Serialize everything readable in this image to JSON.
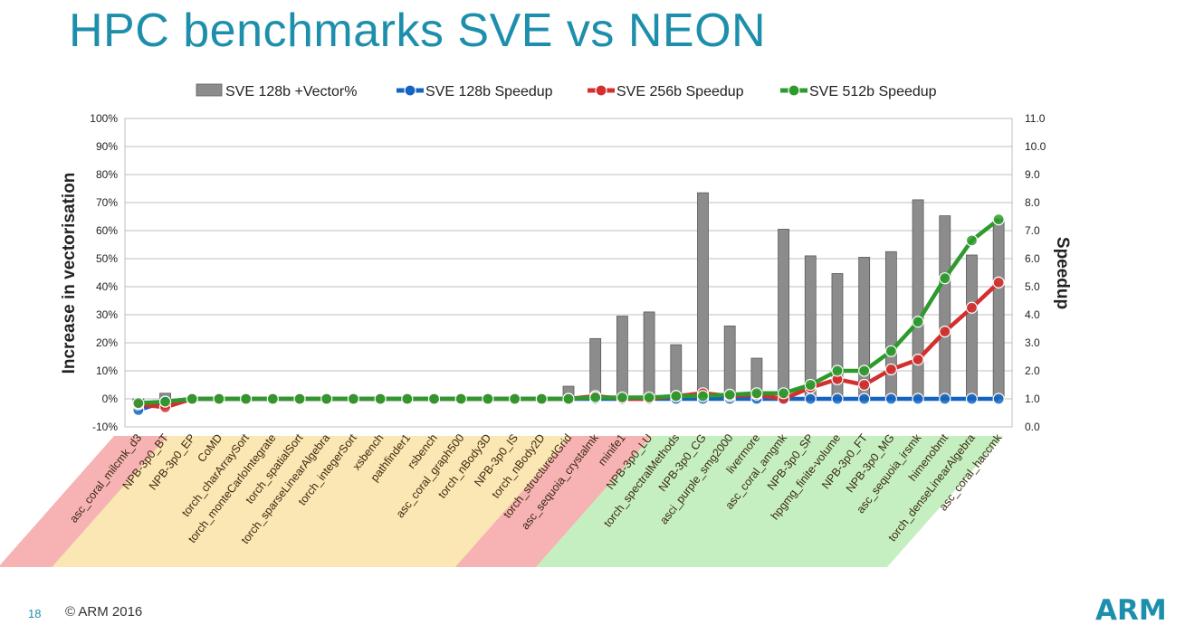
{
  "slide": {
    "title": "HPC benchmarks SVE vs NEON",
    "page_number": "18",
    "copyright": "© ARM 2016",
    "logo_text": "ARM"
  },
  "colors": {
    "title": "#1d8fac",
    "bar": "#8c8c8c",
    "sve128": "#1565c0",
    "sve256": "#d32f2f",
    "sve512": "#2e9a2e",
    "band_red": "#f7b3b3",
    "band_yellow": "#fbe7b3",
    "band_green": "#c6efc1"
  },
  "chart_data": {
    "type": "bar+line",
    "ylabel": "Increase in vectorisation",
    "y2label": "Speedup",
    "ylim": [
      -10,
      100
    ],
    "y_ticks": [
      "-10%",
      "0%",
      "10%",
      "20%",
      "30%",
      "40%",
      "50%",
      "60%",
      "70%",
      "80%",
      "90%",
      "100%"
    ],
    "y2lim": [
      0,
      11
    ],
    "y2_ticks": [
      "0.0",
      "1.0",
      "2.0",
      "3.0",
      "4.0",
      "5.0",
      "6.0",
      "7.0",
      "8.0",
      "9.0",
      "10.0",
      "11.0"
    ],
    "legend_position": "top",
    "categories": [
      "asc_coral_milcmk_d3",
      "NPB-3p0_BT",
      "NPB-3p0_EP",
      "CoMD",
      "torch_charArraySort",
      "torch_monteCarloIntegrate",
      "torch_spatialSort",
      "torch_sparseLinearAlgebra",
      "torch_integerSort",
      "xsbench",
      "pathfinder1",
      "rsbench",
      "asc_coral_graph500",
      "torch_nBody3D",
      "NPB-3p0_IS",
      "torch_nBody2D",
      "torch_structuredGrid",
      "asc_sequoia_crystalmk",
      "minife1",
      "NPB-3p0_LU",
      "torch_spectralMethods",
      "NPB-3p0_CG",
      "asci_purple_smg2000",
      "livermore",
      "asc_coral_amgmk",
      "NPB-3p0_SP",
      "hpgmg_finite-volume",
      "NPB-3p0_FT",
      "NPB-3p0_MG",
      "asc_sequoia_irsmk",
      "himenobmt",
      "torch_denseLinearAlgebra",
      "asc_coral_haccmk"
    ],
    "category_groups": [
      "red",
      "red",
      "yellow",
      "yellow",
      "yellow",
      "yellow",
      "yellow",
      "yellow",
      "yellow",
      "yellow",
      "yellow",
      "yellow",
      "yellow",
      "yellow",
      "yellow",
      "yellow",
      "yellow",
      "red",
      "red",
      "red",
      "green",
      "green",
      "green",
      "green",
      "green",
      "green",
      "green",
      "green",
      "green",
      "green",
      "green",
      "green",
      "green"
    ],
    "bars": {
      "name": "SVE 128b +Vector%",
      "values": [
        -1,
        2,
        0.5,
        0.5,
        0.5,
        0.5,
        0.5,
        0.5,
        0.5,
        0.5,
        0.5,
        0.5,
        0.5,
        0.5,
        0.5,
        0.5,
        4.5,
        21.5,
        29.5,
        31,
        19.3,
        73.5,
        26,
        14.5,
        60.5,
        51,
        44.7,
        50.5,
        52.5,
        71,
        65.3,
        51.3,
        64
      ]
    },
    "series": [
      {
        "name": "SVE 128b Speedup",
        "values": [
          0.6,
          0.9,
          1.0,
          1.0,
          1.0,
          1.0,
          1.0,
          1.0,
          1.0,
          1.0,
          1.0,
          1.0,
          1.0,
          1.0,
          1.0,
          1.0,
          1.0,
          1.0,
          1.0,
          1.0,
          1.0,
          1.0,
          1.0,
          1.0,
          1.0,
          1.0,
          1.0,
          1.0,
          1.0,
          1.0,
          1.0,
          1.0,
          1.0
        ]
      },
      {
        "name": "SVE 256b Speedup",
        "values": [
          0.8,
          0.7,
          1.0,
          1.0,
          1.0,
          1.0,
          1.0,
          1.0,
          1.0,
          1.0,
          1.0,
          1.0,
          1.0,
          1.0,
          1.0,
          1.0,
          1.0,
          1.1,
          1.0,
          1.0,
          1.1,
          1.2,
          1.1,
          1.15,
          1.0,
          1.4,
          1.7,
          1.5,
          2.05,
          2.4,
          3.4,
          4.25,
          5.15
        ]
      },
      {
        "name": "SVE 512b Speedup",
        "values": [
          0.85,
          0.9,
          1.0,
          1.0,
          1.0,
          1.0,
          1.0,
          1.0,
          1.0,
          1.0,
          1.0,
          1.0,
          1.0,
          1.0,
          1.0,
          1.0,
          1.0,
          1.05,
          1.05,
          1.05,
          1.1,
          1.1,
          1.15,
          1.2,
          1.2,
          1.5,
          2.0,
          2.0,
          2.7,
          3.75,
          5.3,
          6.65,
          7.4
        ]
      }
    ]
  }
}
